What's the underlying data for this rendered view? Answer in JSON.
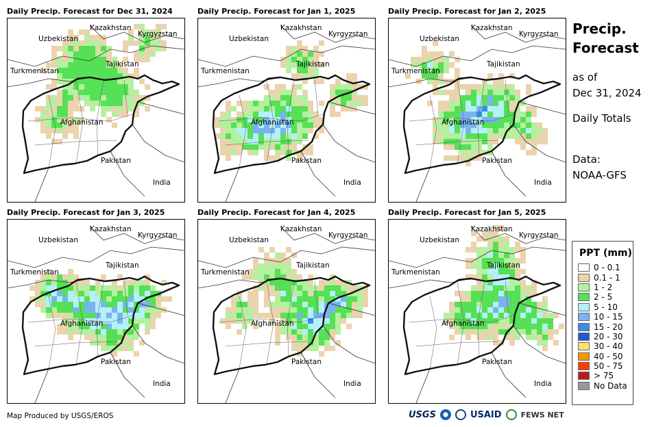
{
  "panels": [
    {
      "title": "Daily Precip. Forecast for Dec 31, 2024",
      "intensity": 0
    },
    {
      "title": "Daily Precip. Forecast for Jan 1, 2025",
      "intensity": 1
    },
    {
      "title": "Daily Precip. Forecast for Jan 2, 2025",
      "intensity": 2
    },
    {
      "title": "Daily Precip. Forecast for Jan 3, 2025",
      "intensity": 3
    },
    {
      "title": "Daily Precip. Forecast for Jan 4, 2025",
      "intensity": 4
    },
    {
      "title": "Daily Precip. Forecast for Jan 5, 2025",
      "intensity": 5
    }
  ],
  "map_labels": {
    "kazakhstan": "Kazakhstan",
    "kyrgyzstan": "Kyrgyzstan",
    "uzbekistan": "Uzbekistan",
    "tajikistan": "Tajikistan",
    "turkmenistan": "Turkmenistan",
    "afghanistan": "Afghanistan",
    "pakistan": "Pakistan",
    "india": "India"
  },
  "side": {
    "title_line1": "Precip.",
    "title_line2": "Forecast",
    "asof_line1": "as of",
    "asof_line2": "Dec 31, 2024",
    "totals": "Daily Totals",
    "data_line1": "Data:",
    "data_line2": "NOAA-GFS"
  },
  "legend": {
    "title": "PPT (mm)",
    "items": [
      {
        "label": "0 - 0.1",
        "color": "#ffffff"
      },
      {
        "label": "0.1 - 1",
        "color": "#ead3ad"
      },
      {
        "label": "1 - 2",
        "color": "#b4f0a0"
      },
      {
        "label": "2 - 5",
        "color": "#55e055"
      },
      {
        "label": "5 - 10",
        "color": "#b4f0fa"
      },
      {
        "label": "10 - 15",
        "color": "#78b4f0"
      },
      {
        "label": "15 - 20",
        "color": "#3c8ce6"
      },
      {
        "label": "20 - 30",
        "color": "#1e5ad2"
      },
      {
        "label": "30 - 40",
        "color": "#fae178"
      },
      {
        "label": "40 - 50",
        "color": "#fa9600"
      },
      {
        "label": "50 - 75",
        "color": "#fa3c00"
      },
      {
        "label": "> 75",
        "color": "#b41e1e"
      },
      {
        "label": "No Data",
        "color": "#999999"
      }
    ]
  },
  "footer": {
    "credit": "Map Produced by USGS/EROS"
  },
  "logos": {
    "usgs": "USGS",
    "usaid": "USAID",
    "fews": "FEWS NET"
  }
}
